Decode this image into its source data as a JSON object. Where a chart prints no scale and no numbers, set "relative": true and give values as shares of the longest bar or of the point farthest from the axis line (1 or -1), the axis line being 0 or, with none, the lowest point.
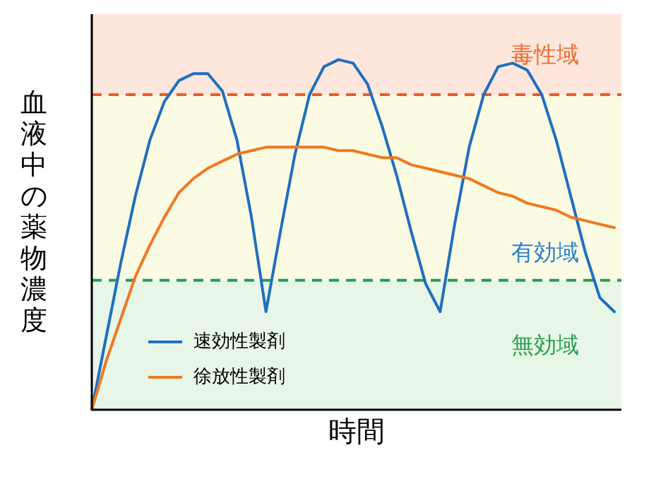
{
  "chart_data": {
    "type": "line",
    "relative": true,
    "xlabel": "時間",
    "ylabel": "血液中の薬物濃度",
    "categories": [
      null,
      null,
      null,
      null,
      null,
      null,
      null,
      null,
      null,
      null,
      null,
      null,
      null,
      null,
      null,
      null,
      null,
      null,
      null,
      null,
      null,
      null,
      null,
      null,
      null,
      null,
      null,
      null,
      null,
      null,
      null,
      null,
      null,
      null,
      null,
      null,
      null
    ],
    "series": [
      {
        "name": "速効性製剤",
        "color": "#1f6fc0",
        "values": [
          0,
          0.21,
          0.42,
          0.61,
          0.77,
          0.88,
          0.94,
          0.96,
          0.96,
          0.91,
          0.77,
          0.55,
          0.28,
          0.51,
          0.73,
          0.9,
          0.98,
          1.0,
          0.99,
          0.93,
          0.81,
          0.67,
          0.51,
          0.36,
          0.28,
          0.53,
          0.75,
          0.9,
          0.98,
          0.99,
          0.97,
          0.9,
          0.77,
          0.61,
          0.45,
          0.32,
          0.28
        ]
      },
      {
        "name": "徐放性製剤",
        "color": "#f07820",
        "values": [
          0,
          0.14,
          0.26,
          0.38,
          0.47,
          0.55,
          0.62,
          0.66,
          0.69,
          0.71,
          0.73,
          0.74,
          0.75,
          0.75,
          0.75,
          0.75,
          0.75,
          0.74,
          0.74,
          0.73,
          0.72,
          0.72,
          0.7,
          0.69,
          0.68,
          0.67,
          0.66,
          0.64,
          0.62,
          0.61,
          0.59,
          0.58,
          0.57,
          0.55,
          0.54,
          0.53,
          0.52
        ]
      }
    ],
    "bands": [
      {
        "axis": "y",
        "from": 0.9,
        "to": 1.13,
        "label": "毒性域",
        "color": "#fde6dc"
      },
      {
        "axis": "y",
        "from": 0.37,
        "to": 0.9,
        "label": "有効域",
        "color": "#fbfbe4"
      },
      {
        "axis": "y",
        "from": 0,
        "to": 0.37,
        "label": "無効域",
        "color": "#e8f6e8"
      }
    ],
    "ref_lines": [
      {
        "axis": "y",
        "value": 0.9,
        "color": "#f05a28",
        "line_style": "dashed"
      },
      {
        "axis": "y",
        "value": 0.37,
        "color": "#20a050",
        "line_style": "dashed"
      }
    ],
    "legend": "bottom left",
    "line_style": "solid",
    "marker": "none"
  }
}
